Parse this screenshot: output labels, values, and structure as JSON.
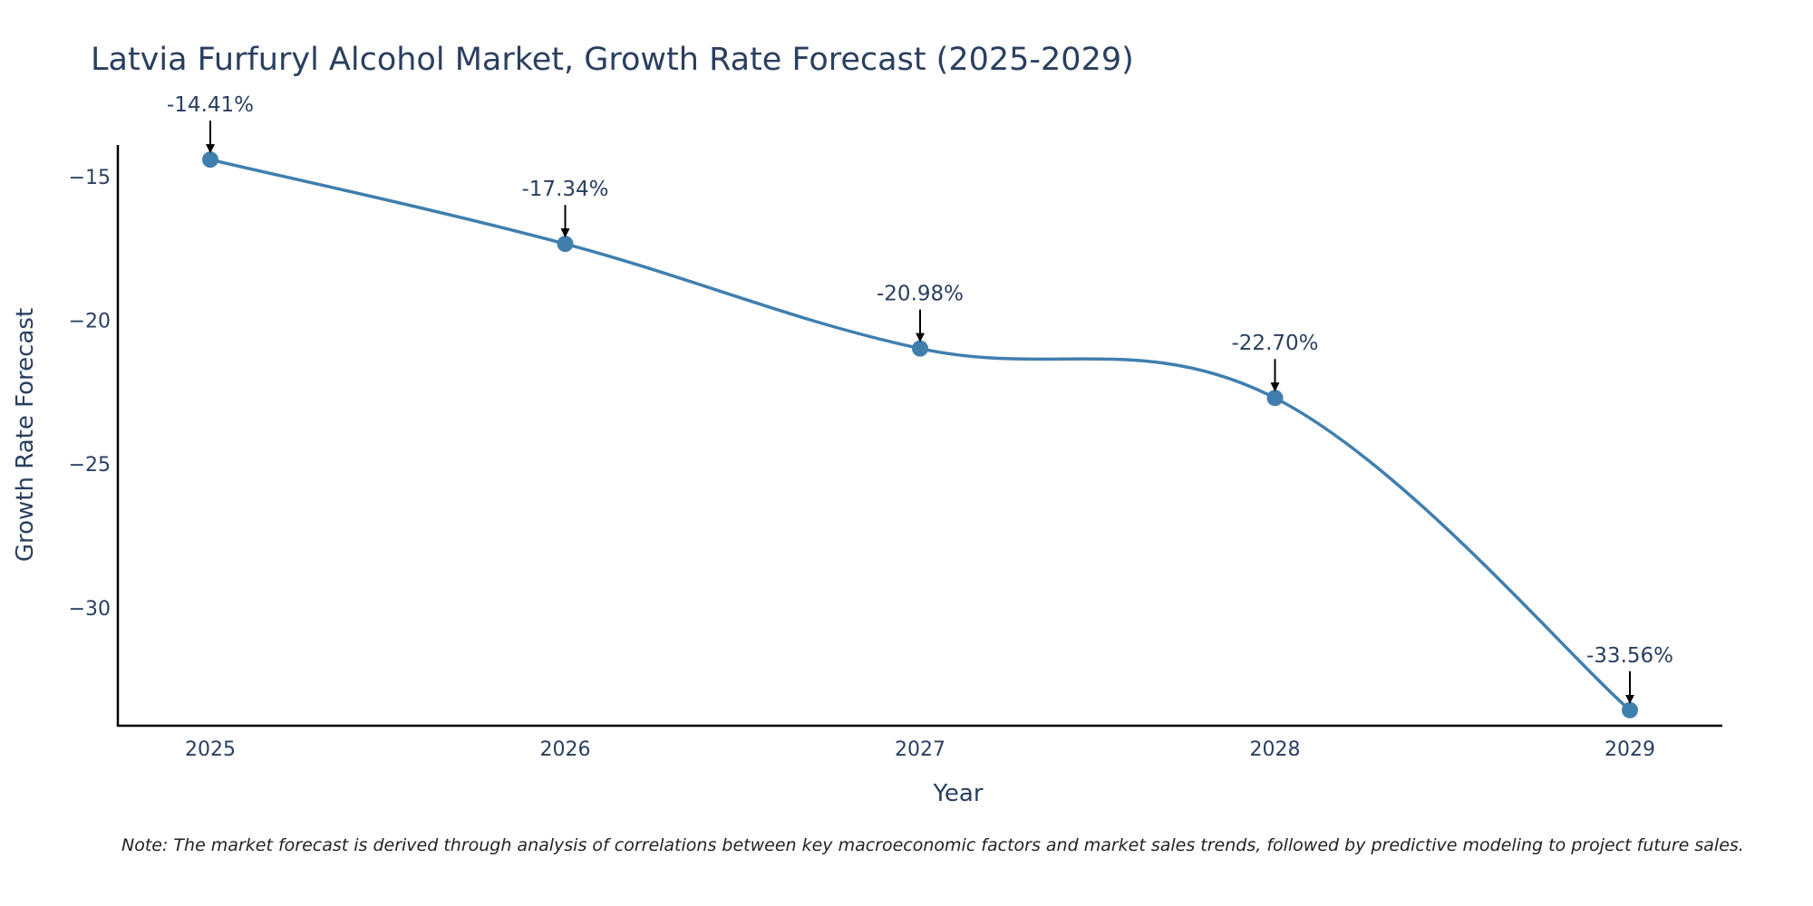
{
  "chart_data": {
    "type": "line",
    "title": "Latvia Furfuryl Alcohol Market, Growth Rate Forecast (2025-2029)",
    "xlabel": "Year",
    "ylabel": "Growth Rate Forecast",
    "categories": [
      "2025",
      "2026",
      "2027",
      "2028",
      "2029"
    ],
    "values": [
      -14.41,
      -17.34,
      -20.98,
      -22.7,
      -33.56
    ],
    "data_labels": [
      "-14.41%",
      "-17.34%",
      "-20.98%",
      "-22.70%",
      "-33.56%"
    ],
    "y_ticks": [
      -15,
      -20,
      -25,
      -30
    ],
    "y_tick_labels": [
      "−15",
      "−20",
      "−25",
      "−30"
    ],
    "ylim": [
      -34.1,
      -13.9
    ],
    "grid": false,
    "line_color": "#3f7fae",
    "marker_color": "#3f7fae",
    "note": "Note: The market forecast is derived through analysis of correlations between key macroeconomic factors and market sales trends, followed by predictive modeling to project future sales."
  }
}
